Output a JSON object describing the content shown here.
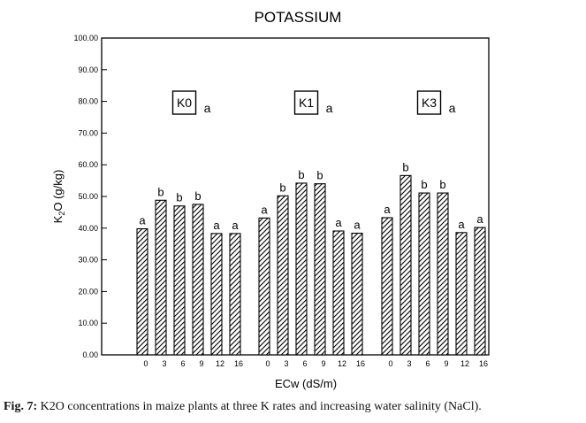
{
  "chart_data": {
    "type": "bar",
    "title": "POTASSIUM",
    "ylabel": "K2O (g/kg)",
    "xlabel": "ECw (dS/m)",
    "ylim": [
      0,
      100
    ],
    "yticks": [
      "0.00",
      "10.00",
      "20.00",
      "30.00",
      "40.00",
      "50.00",
      "60.00",
      "70.00",
      "80.00",
      "90.00",
      "100.00"
    ],
    "categories": [
      "0",
      "3",
      "6",
      "9",
      "12",
      "16"
    ],
    "group_letter": "a",
    "grid": false,
    "groups": [
      {
        "name": "K0",
        "values": [
          39.8,
          48.8,
          47.0,
          47.5,
          38.3,
          38.3
        ],
        "letters": [
          "a",
          "b",
          "b",
          "b",
          "a",
          "a"
        ]
      },
      {
        "name": "K1",
        "values": [
          43.2,
          50.2,
          54.2,
          54.0,
          39.1,
          38.4
        ],
        "letters": [
          "a",
          "b",
          "b",
          "b",
          "a",
          "a"
        ]
      },
      {
        "name": "K3",
        "values": [
          43.3,
          56.6,
          51.1,
          51.1,
          38.6,
          40.2
        ],
        "letters": [
          "a",
          "b",
          "b",
          "b",
          "a",
          "a"
        ]
      }
    ]
  },
  "caption": {
    "label": "Fig. 7:",
    "text": " K2O concentrations in maize plants at three K rates and increasing water salinity (NaCl)."
  }
}
